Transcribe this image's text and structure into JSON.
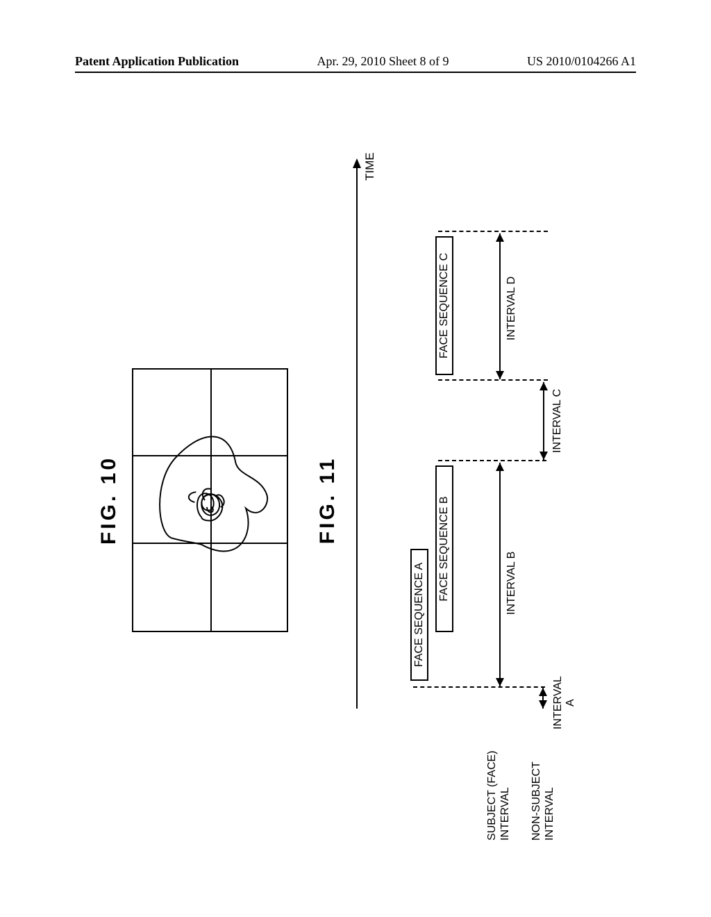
{
  "header": {
    "left": "Patent Application Publication",
    "center": "Apr. 29, 2010  Sheet 8 of 9",
    "right": "US 2010/0104266 A1"
  },
  "fig10": {
    "title": "FIG. 10"
  },
  "fig11": {
    "title": "FIG. 11",
    "time_label": "TIME",
    "sequences": {
      "a": "FACE SEQUENCE A",
      "b": "FACE SEQUENCE B",
      "c": "FACE SEQUENCE C"
    },
    "row_labels": {
      "subject": "SUBJECT (FACE)\nINTERVAL",
      "nonsubject": "NON-SUBJECT\nINTERVAL"
    },
    "intervals": {
      "a": "INTERVAL\nA",
      "b": "INTERVAL B",
      "c": "INTERVAL C",
      "d": "INTERVAL D"
    }
  }
}
